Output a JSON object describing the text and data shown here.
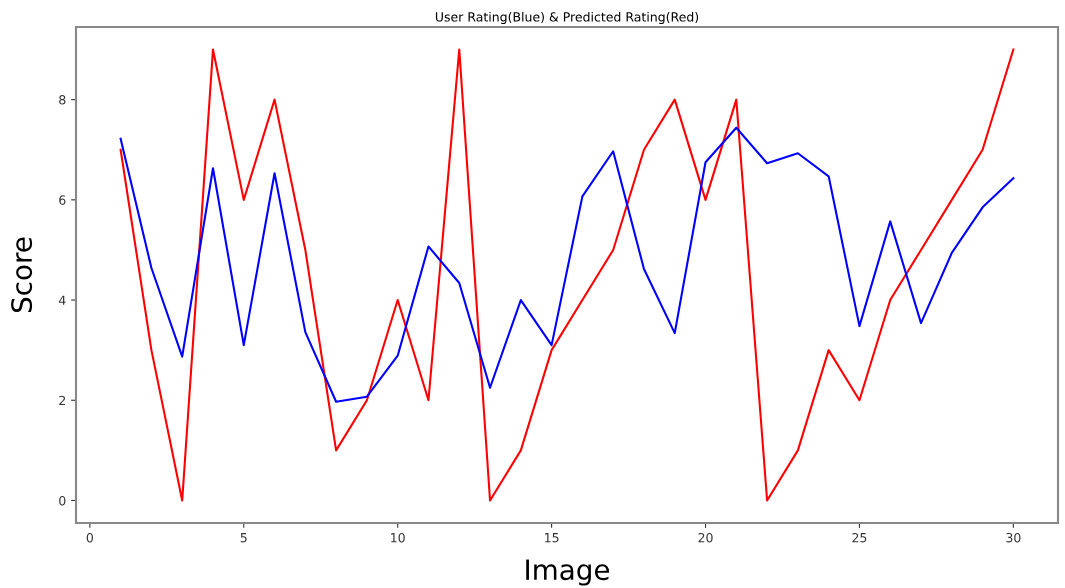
{
  "chart_data": {
    "type": "line",
    "title": "User Rating(Blue) & Predicted Rating(Red)",
    "xlabel": "Image",
    "ylabel": "Score",
    "x": [
      1,
      2,
      3,
      4,
      5,
      6,
      7,
      8,
      9,
      10,
      11,
      12,
      13,
      14,
      15,
      16,
      17,
      18,
      19,
      20,
      21,
      22,
      23,
      24,
      25,
      26,
      27,
      28,
      29,
      30
    ],
    "series": [
      {
        "color": "#ff0000",
        "values": [
          7,
          3,
          0,
          9,
          6,
          8,
          5,
          1,
          2,
          4,
          2,
          9,
          0,
          1,
          3,
          4,
          5,
          7,
          8,
          6,
          8,
          0,
          1,
          3,
          2,
          4,
          5,
          6,
          7,
          9
        ]
      },
      {
        "color": "#0000ff",
        "values": [
          7.22,
          4.64,
          2.87,
          6.63,
          3.1,
          6.53,
          3.36,
          1.97,
          2.07,
          2.89,
          5.07,
          4.34,
          2.25,
          4.0,
          3.1,
          6.07,
          6.97,
          4.62,
          3.34,
          6.75,
          7.44,
          6.73,
          6.93,
          6.47,
          3.48,
          5.57,
          3.54,
          4.94,
          5.85,
          6.43
        ]
      }
    ],
    "xlim": [
      -0.45,
      31.45
    ],
    "ylim": [
      -0.45,
      9.45
    ],
    "xticks": [
      0,
      5,
      10,
      15,
      20,
      25,
      30
    ],
    "yticks": [
      0,
      2,
      4,
      6,
      8
    ],
    "grid": false,
    "legend": false
  }
}
